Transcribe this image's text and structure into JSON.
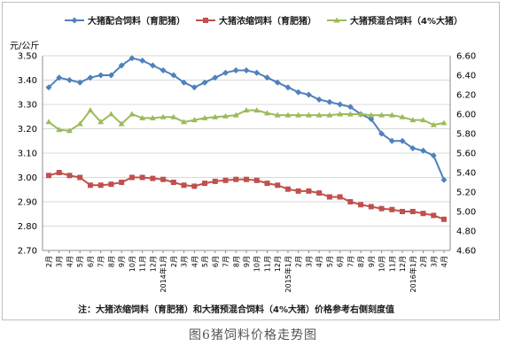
{
  "chart_data": {
    "type": "line",
    "y_unit_label": "元/公斤",
    "yleft_ticks": [
      "3.50",
      "3.40",
      "3.30",
      "3.20",
      "3.10",
      "3.00",
      "2.90",
      "2.80",
      "2.70"
    ],
    "yleft_lim": [
      2.7,
      3.5
    ],
    "yright_ticks": [
      "6.60",
      "6.40",
      "6.20",
      "6.00",
      "5.80",
      "5.60",
      "5.40",
      "5.20",
      "5.00",
      "4.80",
      "4.60"
    ],
    "yright_lim": [
      4.6,
      6.6
    ],
    "x_labels": [
      "2月",
      "3月",
      "4月",
      "5月",
      "6月",
      "7月",
      "8月",
      "9月",
      "10月",
      "11月",
      "12月",
      "2014年1月",
      "2月",
      "3月",
      "4月",
      "5月",
      "6月",
      "7月",
      "8月",
      "9月",
      "10月",
      "11月",
      "12月",
      "2015年1月",
      "2月",
      "3月",
      "4月",
      "5月",
      "6月",
      "7月",
      "8月",
      "9月",
      "10月",
      "11月",
      "12月",
      "2016年1月",
      "2月",
      "3月",
      "4月"
    ],
    "x_tick_indices": [
      0,
      2,
      4,
      6,
      8,
      10,
      12,
      14,
      16,
      18,
      20,
      22,
      24,
      26,
      28,
      30,
      32,
      34,
      36,
      38,
      40,
      42,
      44,
      46,
      48,
      50,
      52,
      54,
      56,
      58,
      60,
      62,
      64,
      66,
      68,
      70,
      72,
      74,
      76
    ],
    "grid": "horizontal",
    "legend_position": "top",
    "series": [
      {
        "name": "大猪配合饲料（育肥猪）",
        "axis": "left",
        "color": "#4f81bd",
        "marker": "diamond",
        "values": [
          3.37,
          3.41,
          3.4,
          3.39,
          3.41,
          3.42,
          3.42,
          3.46,
          3.49,
          3.48,
          3.46,
          3.44,
          3.42,
          3.39,
          3.37,
          3.39,
          3.41,
          3.43,
          3.44,
          3.44,
          3.43,
          3.41,
          3.39,
          3.37,
          3.35,
          3.34,
          3.32,
          3.31,
          3.3,
          3.29,
          3.26,
          3.24,
          3.18,
          3.15,
          3.15,
          3.12,
          3.11,
          3.09,
          2.99
        ]
      },
      {
        "name": "大猪浓缩饲料（育肥猪）",
        "axis": "right",
        "color": "#c0504d",
        "marker": "square",
        "values": [
          5.37,
          5.4,
          5.37,
          5.35,
          5.27,
          5.27,
          5.28,
          5.3,
          5.35,
          5.35,
          5.34,
          5.33,
          5.3,
          5.27,
          5.26,
          5.29,
          5.31,
          5.32,
          5.33,
          5.33,
          5.32,
          5.29,
          5.27,
          5.23,
          5.21,
          5.21,
          5.19,
          5.15,
          5.15,
          5.1,
          5.07,
          5.05,
          5.03,
          5.02,
          5.0,
          5.0,
          4.98,
          4.96,
          4.92
        ]
      },
      {
        "name": "大猪预混合饲料（4%大猪）",
        "axis": "right",
        "color": "#9bbb59",
        "marker": "triangle",
        "values": [
          5.92,
          5.84,
          5.83,
          5.9,
          6.04,
          5.92,
          6.0,
          5.9,
          6.0,
          5.96,
          5.96,
          5.97,
          5.97,
          5.92,
          5.94,
          5.96,
          5.97,
          5.98,
          5.99,
          6.04,
          6.04,
          6.01,
          5.99,
          5.99,
          5.99,
          5.99,
          5.99,
          5.99,
          6.0,
          6.0,
          6.0,
          5.99,
          5.99,
          5.99,
          5.97,
          5.94,
          5.94,
          5.89,
          5.91
        ]
      }
    ],
    "note": "注：大猪浓缩饲料（育肥猪）和大猪预混合饲料（4%大猪）价格参考右侧刻度值"
  },
  "caption": "图6猪饲料价格走势图"
}
